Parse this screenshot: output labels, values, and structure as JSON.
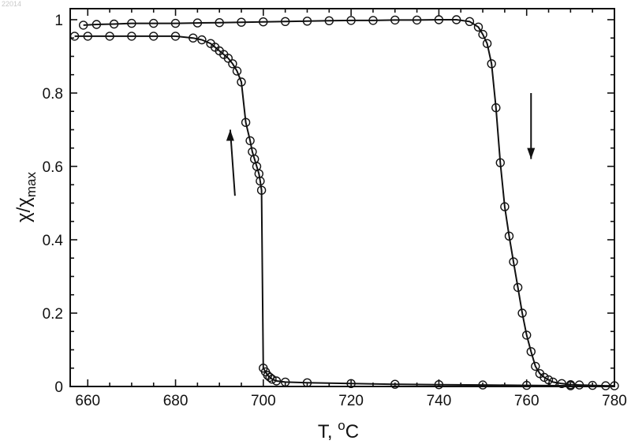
{
  "watermark": "22014",
  "chart_data": {
    "type": "scatter",
    "title": "",
    "xlabel_main": "T, ",
    "xlabel_sup": "o",
    "xlabel_tail": "C",
    "ylabel_main": "χ/χ",
    "ylabel_sub": "max",
    "xlim": [
      656,
      780
    ],
    "ylim": [
      0,
      1.03
    ],
    "xticks": [
      660,
      680,
      700,
      720,
      740,
      760,
      780
    ],
    "yticks": [
      0,
      0.2,
      0.4,
      0.6,
      0.8,
      1
    ],
    "ytick_labels": [
      "0",
      "0.2",
      "0.4",
      "0.6",
      "0.8",
      "1"
    ],
    "grid": false,
    "series": [
      {
        "direction": "heating",
        "x": [
          659,
          662,
          666,
          670,
          675,
          680,
          685,
          690,
          695,
          700,
          705,
          710,
          715,
          720,
          725,
          730,
          735,
          740,
          744,
          747,
          749,
          750,
          751,
          752,
          753,
          754,
          755,
          756,
          757,
          758,
          759,
          760,
          761,
          762,
          763,
          764,
          765,
          766,
          768,
          770,
          772,
          775,
          778,
          780
        ],
        "y": [
          0.985,
          0.987,
          0.988,
          0.99,
          0.99,
          0.99,
          0.991,
          0.992,
          0.993,
          0.994,
          0.995,
          0.996,
          0.997,
          0.998,
          0.998,
          0.999,
          0.999,
          1.0,
          1.0,
          0.995,
          0.98,
          0.96,
          0.935,
          0.88,
          0.76,
          0.61,
          0.49,
          0.41,
          0.34,
          0.27,
          0.2,
          0.14,
          0.095,
          0.055,
          0.035,
          0.025,
          0.018,
          0.012,
          0.008,
          0.005,
          0.004,
          0.003,
          0.002,
          0.002
        ]
      },
      {
        "direction": "cooling",
        "x": [
          657,
          660,
          665,
          670,
          675,
          680,
          684,
          686,
          688,
          689,
          690,
          691,
          692,
          693,
          694,
          695,
          696,
          697,
          697.5,
          698,
          698.5,
          699,
          699.3,
          699.6,
          700,
          700.5,
          701,
          701.5,
          702,
          703,
          705,
          710,
          720,
          730,
          740,
          750,
          760,
          770
        ],
        "y": [
          0.955,
          0.955,
          0.955,
          0.955,
          0.955,
          0.955,
          0.95,
          0.945,
          0.935,
          0.925,
          0.915,
          0.905,
          0.895,
          0.88,
          0.86,
          0.83,
          0.72,
          0.67,
          0.64,
          0.62,
          0.6,
          0.58,
          0.56,
          0.535,
          0.05,
          0.04,
          0.03,
          0.025,
          0.02,
          0.015,
          0.012,
          0.01,
          0.008,
          0.006,
          0.005,
          0.004,
          0.003,
          0.002
        ]
      }
    ],
    "annotations": [
      {
        "type": "arrow",
        "meaning": "cooling",
        "direction": "up",
        "near_x": 693,
        "y_from": 0.52,
        "y_to": 0.7
      },
      {
        "type": "arrow",
        "meaning": "heating",
        "direction": "down",
        "near_x": 761,
        "y_from": 0.8,
        "y_to": 0.62
      }
    ]
  }
}
